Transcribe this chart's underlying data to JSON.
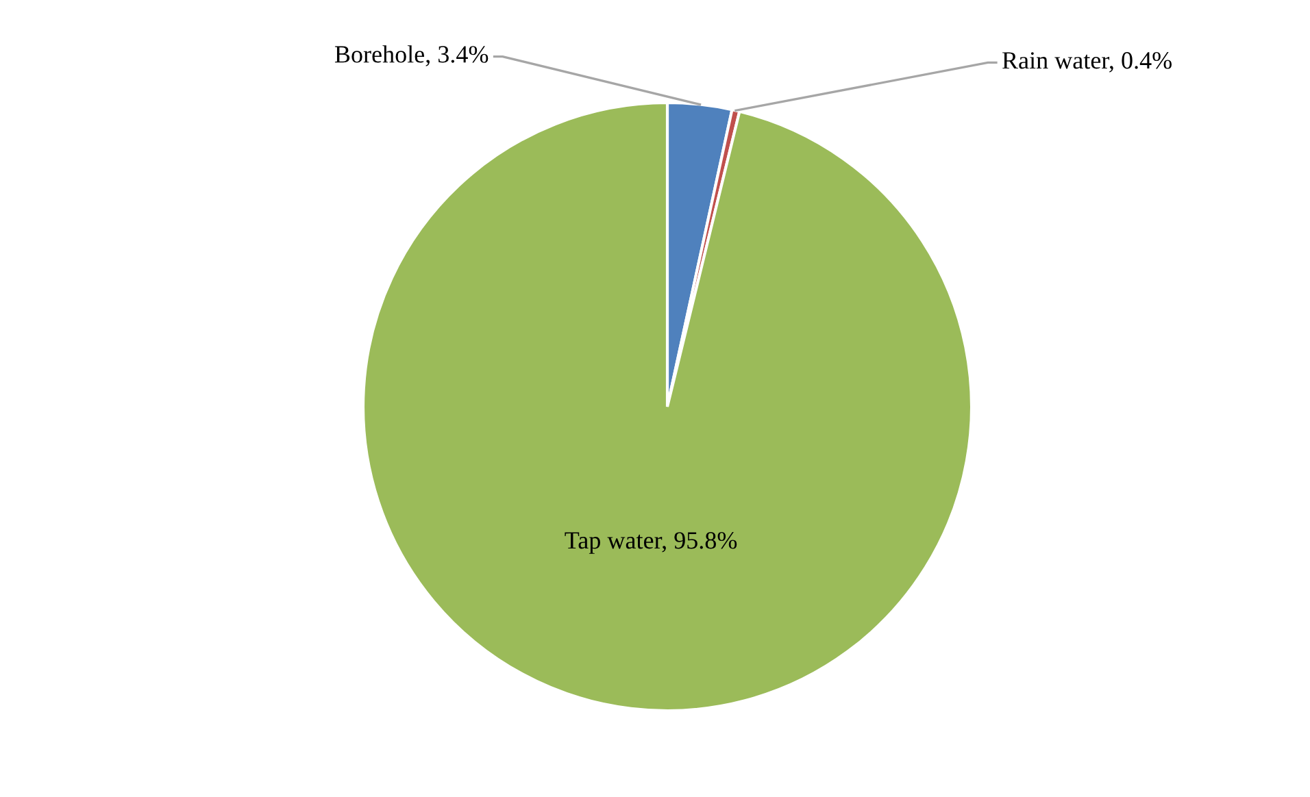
{
  "chart_data": {
    "type": "pie",
    "categories": [
      "Borehole",
      "Rain water",
      "Tap water"
    ],
    "values": [
      3.4,
      0.4,
      95.8
    ],
    "colors": [
      "#4f81bd",
      "#c0504d",
      "#9bbb59"
    ],
    "value_labels": [
      "3.4%",
      "0.4%",
      "95.8%"
    ]
  }
}
